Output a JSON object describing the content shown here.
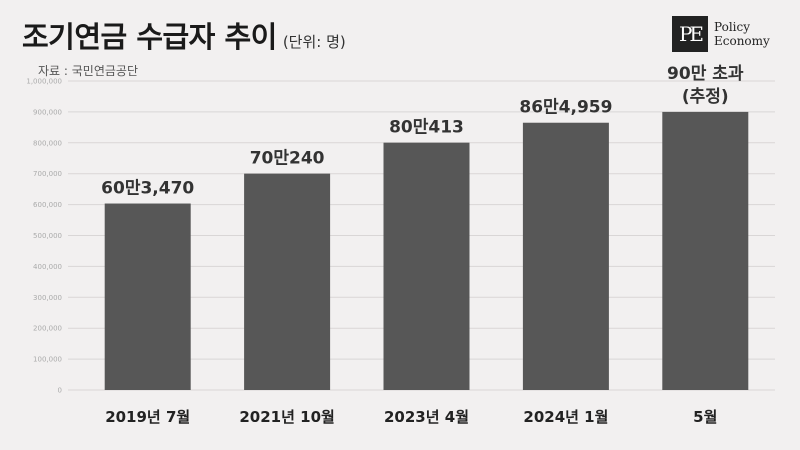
{
  "title": "조기연금 수급자 추이",
  "unit": "(단위: 명)",
  "source": "자료 : 국민연금공단",
  "logo": {
    "mark": "PE",
    "line1": "Policy",
    "line2": "Economy"
  },
  "colors": {
    "bar": "#575757",
    "gridline": "#d9d6d6",
    "background": "#f2f0f0"
  },
  "chart_data": {
    "type": "bar",
    "title": "조기연금 수급자 추이",
    "ylabel": "",
    "xlabel": "",
    "ylim": [
      0,
      1000000
    ],
    "yticks": [
      0,
      100000,
      200000,
      300000,
      400000,
      500000,
      600000,
      700000,
      800000,
      900000,
      1000000
    ],
    "ytick_labels": [
      "0",
      "100,000",
      "200,000",
      "300,000",
      "400,000",
      "500,000",
      "600,000",
      "700,000",
      "800,000",
      "900,000",
      "1,000,000"
    ],
    "grid": true,
    "categories": [
      "2019년 7월",
      "2021년 10월",
      "2023년 4월",
      "2024년 1월",
      "5월"
    ],
    "values": [
      603470,
      700240,
      800413,
      864959,
      900000
    ],
    "data_labels": [
      [
        "60만3,470"
      ],
      [
        "70만240"
      ],
      [
        "80만413"
      ],
      [
        "86만4,959"
      ],
      [
        "90만 초과",
        "(추정)"
      ]
    ]
  }
}
